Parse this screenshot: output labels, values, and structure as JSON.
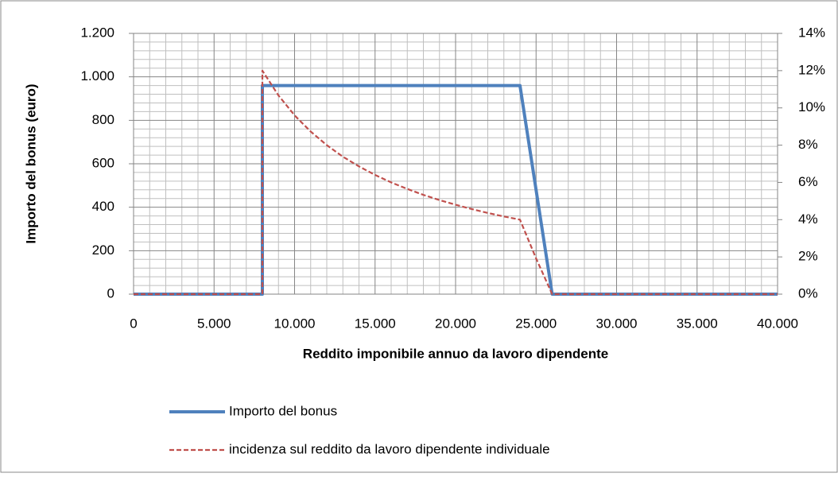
{
  "chart_data": {
    "type": "line",
    "xlabel": "Reddito imponibile annuo da lavoro dipendente",
    "ylabel": "Importo del bonus (euro)",
    "xlim": [
      0,
      40000
    ],
    "xticks": [
      0,
      {
        "value": 5000,
        "label": "5.000"
      },
      {
        "value": 10000,
        "label": "10.000"
      },
      {
        "value": 15000,
        "label": "15.000"
      },
      {
        "value": 20000,
        "label": "20.000"
      },
      {
        "value": 25000,
        "label": "25.000"
      },
      {
        "value": 30000,
        "label": "30.000"
      },
      {
        "value": 35000,
        "label": "35.000"
      },
      {
        "value": 40000,
        "label": "40.000"
      }
    ],
    "xminor": [
      1000,
      2000,
      3000,
      4000,
      6000,
      7000,
      8000,
      9000,
      11000,
      12000,
      13000,
      14000,
      16000,
      17000,
      18000,
      19000,
      21000,
      22000,
      23000,
      24000,
      26000,
      27000,
      28000,
      29000,
      31000,
      32000,
      33000,
      34000,
      36000,
      37000,
      38000,
      39000
    ],
    "ylim": [
      0,
      1200
    ],
    "yticks": [
      0,
      200,
      400,
      600,
      800,
      {
        "value": 1000,
        "label": "1.000"
      },
      {
        "value": 1200,
        "label": "1.200"
      }
    ],
    "yminor": [
      40,
      80,
      120,
      160,
      240,
      280,
      320,
      360,
      440,
      480,
      520,
      560,
      640,
      680,
      720,
      760,
      840,
      880,
      920,
      960,
      1040,
      1080,
      1120,
      1160
    ],
    "y2lim": [
      0,
      14
    ],
    "y2ticks": [
      {
        "value": 0,
        "label": "0%"
      },
      {
        "value": 2,
        "label": "2%"
      },
      {
        "value": 4,
        "label": "4%"
      },
      {
        "value": 6,
        "label": "6%"
      },
      {
        "value": 8,
        "label": "8%"
      },
      {
        "value": 10,
        "label": "10%"
      },
      {
        "value": 12,
        "label": "12%"
      },
      {
        "value": 14,
        "label": "14%"
      }
    ],
    "grid": true,
    "legend": "bottom-left",
    "series": [
      {
        "name": "Importo del bonus",
        "color": "#4f81bd",
        "style": "solid",
        "x": [
          0,
          8000,
          8000,
          24000,
          26000,
          40000
        ],
        "values": [
          0,
          0,
          960,
          960,
          0,
          0
        ]
      },
      {
        "name": "incidenza sul reddito da lavoro dipendente individuale",
        "color": "#c0504d",
        "style": "dashed",
        "axis": "y2",
        "x": [
          0,
          8000,
          8000,
          9000,
          10000,
          11000,
          12000,
          13000,
          14000,
          15000,
          16000,
          17000,
          18000,
          19000,
          20000,
          21000,
          22000,
          23000,
          24000,
          25000,
          26000,
          40000
        ],
        "values": [
          0,
          0,
          12,
          10.67,
          9.6,
          8.73,
          8,
          7.38,
          6.86,
          6.4,
          6,
          5.65,
          5.33,
          5.05,
          4.8,
          4.57,
          4.36,
          4.17,
          4,
          1.92,
          0,
          0
        ]
      }
    ]
  }
}
